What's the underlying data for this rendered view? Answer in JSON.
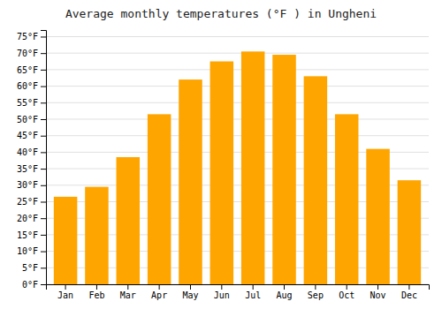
{
  "chart_data": {
    "type": "bar",
    "title": "Average monthly temperatures (°F ) in Ungheni",
    "categories": [
      "Jan",
      "Feb",
      "Mar",
      "Apr",
      "May",
      "Jun",
      "Jul",
      "Aug",
      "Sep",
      "Oct",
      "Nov",
      "Dec"
    ],
    "values": [
      26.5,
      29.5,
      38.5,
      51.5,
      62.0,
      67.5,
      70.5,
      69.5,
      63.0,
      51.5,
      41.0,
      31.5
    ],
    "color": "#FFA500",
    "ylim": [
      0,
      77
    ],
    "yticks": [
      {
        "value": 0,
        "label": "0°F"
      },
      {
        "value": 5,
        "label": "5°F"
      },
      {
        "value": 10,
        "label": "10°F"
      },
      {
        "value": 15,
        "label": "15°F"
      },
      {
        "value": 20,
        "label": "20°F"
      },
      {
        "value": 25,
        "label": "25°F"
      },
      {
        "value": 30,
        "label": "30°F"
      },
      {
        "value": 35,
        "label": "35°F"
      },
      {
        "value": 40,
        "label": "40°F"
      },
      {
        "value": 45,
        "label": "45°F"
      },
      {
        "value": 50,
        "label": "50°F"
      },
      {
        "value": 55,
        "label": "55°F"
      },
      {
        "value": 60,
        "label": "60°F"
      },
      {
        "value": 65,
        "label": "65°F"
      },
      {
        "value": 70,
        "label": "70°F"
      },
      {
        "value": 75,
        "label": "75°F"
      }
    ],
    "grid": true
  }
}
